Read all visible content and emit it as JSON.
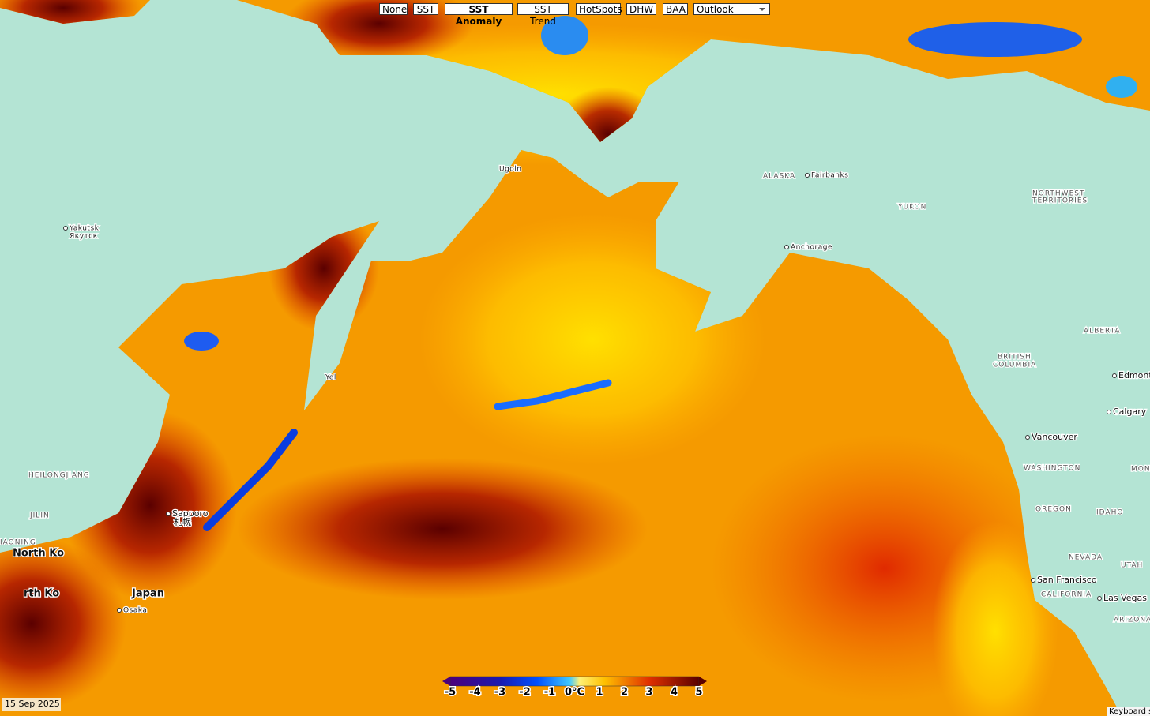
{
  "toolbar": {
    "buttons": [
      "None",
      "SST",
      "SST Anomaly",
      "SST Trend",
      "HotSpots",
      "DHW",
      "BAA"
    ],
    "select": "Outlook"
  },
  "map_labels": [
    "Yakutsk",
    "Якутск",
    "Ugoln",
    "ALASKA",
    "Fairbanks",
    "NORTHWEST",
    "TERRITORIES",
    "YUKON",
    "Anchorage",
    "ALBERTA",
    "BRITISH",
    "COLUMBIA",
    "Edmont",
    "Calgary",
    "Vancouver",
    "WASHINGTON",
    "MON",
    "OREGON",
    "IDAHO",
    "NEVADA",
    "UTAH",
    "San Francisco",
    "CALIFORNIA",
    "Las Vegas",
    "ARIZONA",
    "HEILONGJIANG",
    "JILIN",
    "IAONING",
    "North Ko",
    "rth Ko",
    "Japan",
    "Osaka",
    "Sapporo",
    "札幌",
    "Yel"
  ],
  "legend": {
    "labels": [
      "-5",
      "-4",
      "-3",
      "-2",
      "-1",
      "0°C",
      "1",
      "2",
      "3",
      "4",
      "5"
    ]
  },
  "date": "15 Sep 2025",
  "footer": "Keyboard sh"
}
